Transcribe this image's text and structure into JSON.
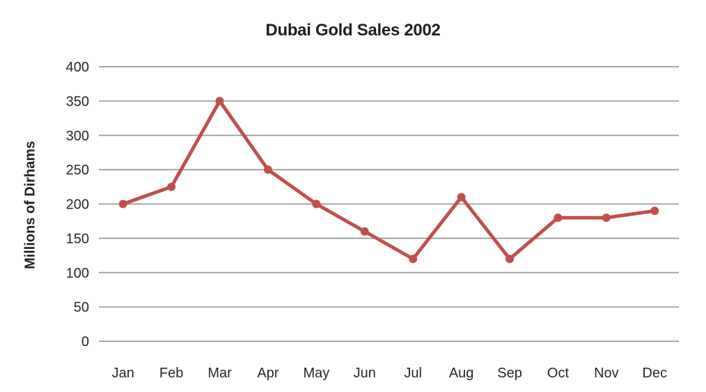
{
  "chart_data": {
    "type": "line",
    "title": "Dubai Gold Sales 2002",
    "ylabel": "Millions of Dirhams",
    "xlabel": "",
    "categories": [
      "Jan",
      "Feb",
      "Mar",
      "Apr",
      "May",
      "Jun",
      "Jul",
      "Aug",
      "Sep",
      "Oct",
      "Nov",
      "Dec"
    ],
    "values": [
      200,
      225,
      350,
      250,
      200,
      160,
      120,
      210,
      120,
      180,
      180,
      190
    ],
    "ylim": [
      0,
      400
    ],
    "yticks": [
      0,
      50,
      100,
      150,
      200,
      250,
      300,
      350,
      400
    ],
    "grid": true,
    "legend": false,
    "colors": {
      "line": "#C0504D",
      "marker": "#C0504D",
      "gridline": "#A6A6A6",
      "title_text": "#1F1F1F",
      "axis_text": "#262626"
    }
  }
}
